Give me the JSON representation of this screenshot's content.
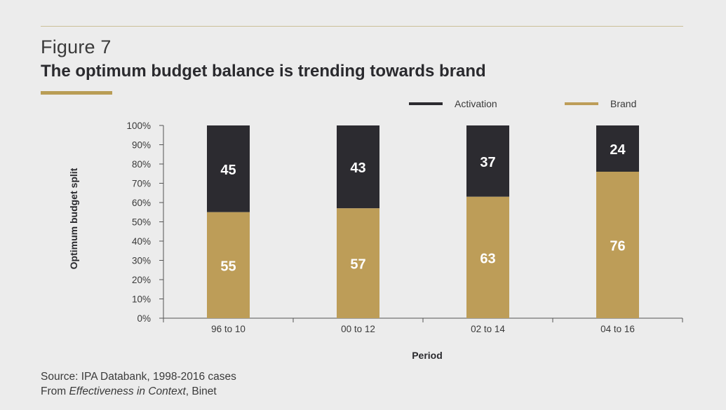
{
  "figure_label": "Figure 7",
  "title": "The optimum budget balance is trending towards brand",
  "source_line1": "Source: IPA Databank, 1998-2016 cases",
  "source_line2_prefix": "From ",
  "source_line2_italic": "Effectiveness in Context",
  "source_line2_suffix": ", Binet",
  "colors": {
    "activation": "#2c2b30",
    "brand": "#bd9d58",
    "accent": "#b99d55"
  },
  "chart_data": {
    "type": "bar",
    "stacked": true,
    "categories": [
      "96 to 10",
      "00 to 12",
      "02 to 14",
      "04 to 16"
    ],
    "series": [
      {
        "name": "Brand",
        "values": [
          55,
          57,
          63,
          76
        ],
        "color": "#bd9d58"
      },
      {
        "name": "Activation",
        "values": [
          45,
          43,
          37,
          24
        ],
        "color": "#2c2b30"
      }
    ],
    "xlabel": "Period",
    "ylabel": "Optimum budget split",
    "ylim": [
      0,
      100
    ],
    "yticks": [
      "0%",
      "10%",
      "20%",
      "30%",
      "40%",
      "50%",
      "60%",
      "70%",
      "80%",
      "90%",
      "100%"
    ],
    "legend": [
      "Activation",
      "Brand"
    ],
    "legend_position": "top-right"
  }
}
